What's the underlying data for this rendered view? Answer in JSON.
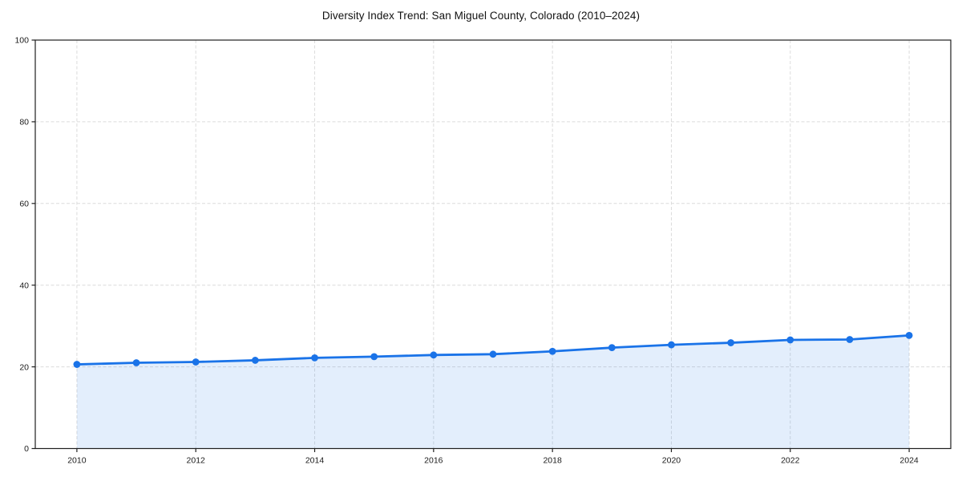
{
  "chart_data": {
    "type": "line",
    "title": "Diversity Index Trend: San Miguel County, Colorado (2010–2024)",
    "x": [
      2010,
      2011,
      2012,
      2013,
      2014,
      2015,
      2016,
      2017,
      2018,
      2019,
      2020,
      2021,
      2022,
      2023,
      2024
    ],
    "values": [
      20.6,
      21.0,
      21.2,
      21.6,
      22.2,
      22.5,
      22.9,
      23.1,
      23.8,
      24.7,
      25.4,
      25.9,
      26.6,
      26.7,
      27.7
    ],
    "xlabel": "",
    "ylabel": "",
    "xlim": [
      2009.3,
      2024.7
    ],
    "ylim": [
      0,
      100
    ],
    "xticks": [
      2010,
      2012,
      2014,
      2016,
      2018,
      2020,
      2022,
      2024
    ],
    "yticks": [
      0,
      20,
      40,
      60,
      80,
      100
    ],
    "grid": true,
    "grid_style": "dashed",
    "legend": "none",
    "marker": "circle",
    "area_fill": true,
    "line_color": "#1a73e8",
    "fill_color": "rgba(26,115,232,0.12)",
    "grid_color": "#dcdcdc",
    "axis_color": "#1f1f1f",
    "tick_label_color": "#1a1a1a"
  }
}
